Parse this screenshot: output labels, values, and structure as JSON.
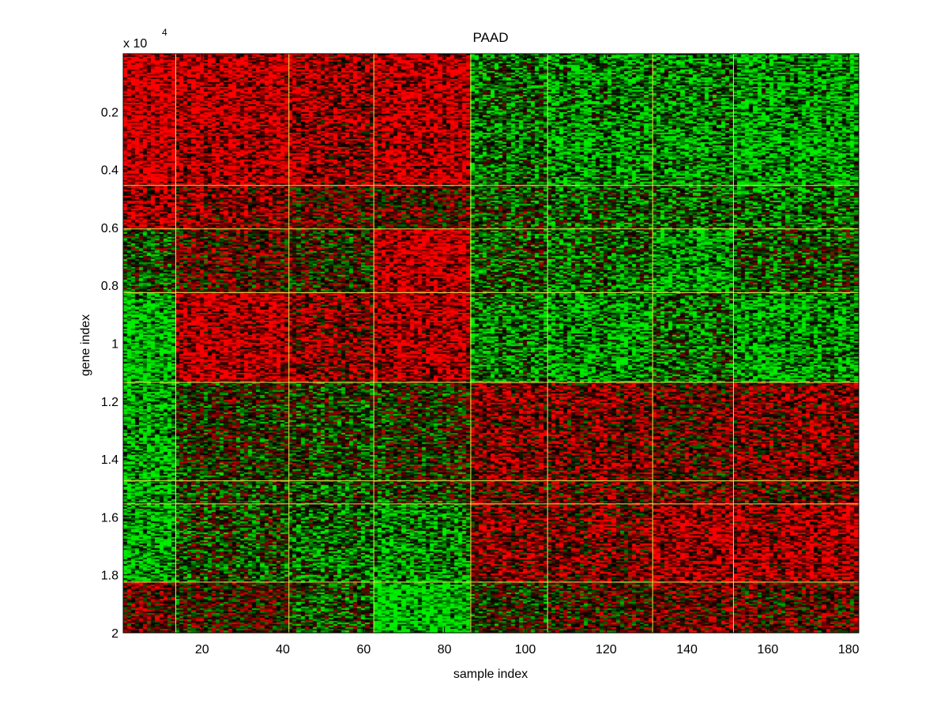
{
  "chart_data": {
    "type": "heatmap",
    "title": "PAAD",
    "xlabel": "sample index",
    "ylabel": "gene index",
    "y_scale_label": "x 10",
    "y_scale_exponent": "4",
    "xlim": [
      1,
      182
    ],
    "ylim": [
      1,
      20000
    ],
    "y_reversed": true,
    "x_ticks": [
      20,
      40,
      60,
      80,
      100,
      120,
      140,
      160,
      180
    ],
    "x_tick_labels": [
      "20",
      "40",
      "60",
      "80",
      "100",
      "120",
      "140",
      "160",
      "180"
    ],
    "y_ticks": [
      2000,
      4000,
      6000,
      8000,
      10000,
      12000,
      14000,
      16000,
      18000,
      20000
    ],
    "y_tick_labels": [
      "0.2",
      "0.4",
      "0.6",
      "0.8",
      "1",
      "1.2",
      "1.4",
      "1.6",
      "1.8",
      "2"
    ],
    "colormap": {
      "low": "#00ee00",
      "mid": "#000000",
      "high": "#ff0000"
    },
    "separator_color": "#e8e850",
    "sample_cluster_boundaries": [
      13.5,
      41.5,
      62.5,
      86.5,
      105.5,
      131.5,
      151.5
    ],
    "gene_cluster_boundaries": [
      4550,
      6050,
      8250,
      11350,
      14750,
      15550,
      18250
    ],
    "block_mean_expression": [
      [
        0.85,
        0.75,
        0.6,
        0.75,
        -0.45,
        -0.6,
        -0.55,
        -0.65
      ],
      [
        0.65,
        0.45,
        0.25,
        0.2,
        -0.2,
        -0.3,
        -0.35,
        -0.4
      ],
      [
        -0.25,
        0.25,
        0.05,
        0.8,
        -0.25,
        -0.35,
        -0.65,
        -0.2
      ],
      [
        -0.85,
        0.75,
        0.5,
        0.75,
        -0.45,
        -0.6,
        -0.35,
        -0.6
      ],
      [
        -0.75,
        -0.05,
        -0.15,
        -0.05,
        0.45,
        0.4,
        0.25,
        0.45
      ],
      [
        -0.7,
        -0.1,
        -0.2,
        -0.1,
        0.3,
        0.3,
        0.3,
        0.3
      ],
      [
        -0.75,
        -0.2,
        -0.4,
        -0.55,
        0.4,
        0.35,
        0.65,
        0.65
      ],
      [
        0.3,
        0.1,
        -0.2,
        -0.9,
        -0.1,
        0.1,
        0.35,
        0.25
      ]
    ]
  }
}
